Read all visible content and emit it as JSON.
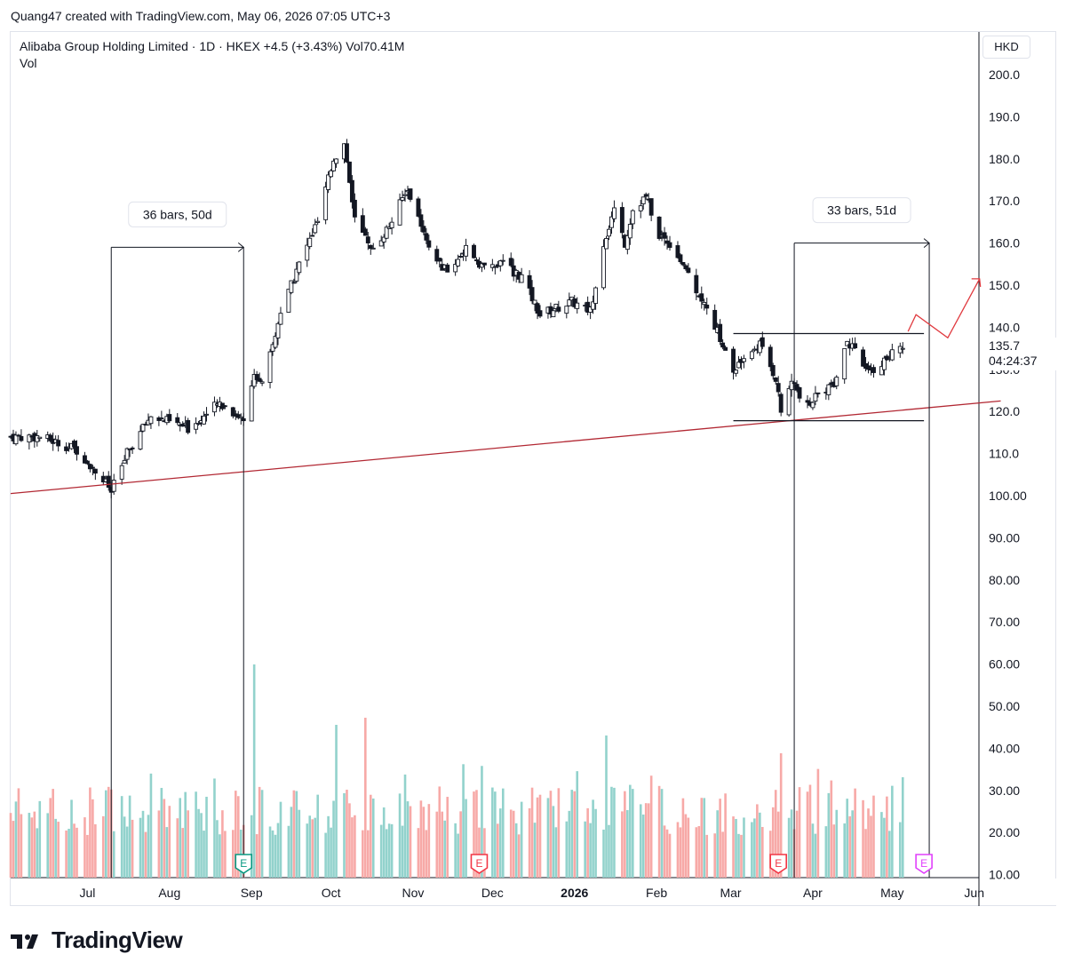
{
  "header": {
    "credit": "Quang47 created with TradingView.com, May 06, 2026 07:05 UTC+3",
    "legend_line1": "Alibaba Group Holding Limited · 1D · HKEX  +4.5 (+3.43%)  Vol70.41M",
    "legend_line2": "Vol"
  },
  "price_scale": {
    "currency": "HKD",
    "current_price": "135.7",
    "countdown": "04:24:37"
  },
  "brand": {
    "name": "TradingView"
  },
  "chart_data": {
    "type": "candlestick",
    "symbol": "Alibaba Group Holding Limited",
    "exchange": "HKEX",
    "interval": "1D",
    "currency": "HKD",
    "change": "+4.5 (+3.43%)",
    "volume_label": "Vol70.41M",
    "y_ticks": [
      "200.0",
      "190.0",
      "180.0",
      "170.0",
      "160.0",
      "150.0",
      "140.0",
      "130.0",
      "120.0",
      "110.0",
      "100.00",
      "90.00",
      "80.00",
      "70.00",
      "60.00",
      "50.00",
      "40.00",
      "30.00",
      "20.00",
      "10.00"
    ],
    "ylim": [
      10,
      203
    ],
    "x_ticks": [
      {
        "label": "Jul",
        "date": "2025-07-01",
        "bold": false
      },
      {
        "label": "Aug",
        "date": "2025-08-01",
        "bold": false
      },
      {
        "label": "Sep",
        "date": "2025-09-01",
        "bold": false
      },
      {
        "label": "Oct",
        "date": "2025-10-01",
        "bold": false
      },
      {
        "label": "Nov",
        "date": "2025-11-01",
        "bold": false
      },
      {
        "label": "Dec",
        "date": "2025-12-01",
        "bold": false
      },
      {
        "label": "2026",
        "date": "2026-01-01",
        "bold": true
      },
      {
        "label": "Feb",
        "date": "2026-02-01",
        "bold": false
      },
      {
        "label": "Mar",
        "date": "2026-03-01",
        "bold": false
      },
      {
        "label": "Apr",
        "date": "2026-04-01",
        "bold": false
      },
      {
        "label": "May",
        "date": "2026-05-01",
        "bold": false
      },
      {
        "label": "Jun",
        "date": "2026-06-01",
        "bold": false
      }
    ],
    "close_anchors": [
      [
        "2025-06-13",
        114
      ],
      [
        "2025-06-27",
        111
      ],
      [
        "2025-07-08",
        103
      ],
      [
        "2025-07-10",
        101
      ],
      [
        "2025-07-16",
        110
      ],
      [
        "2025-07-25",
        119
      ],
      [
        "2025-08-08",
        116
      ],
      [
        "2025-08-20",
        122
      ],
      [
        "2025-08-29",
        118
      ],
      [
        "2025-09-02",
        130
      ],
      [
        "2025-09-05",
        126
      ],
      [
        "2025-09-12",
        143
      ],
      [
        "2025-09-19",
        155
      ],
      [
        "2025-09-26",
        165
      ],
      [
        "2025-10-02",
        180
      ],
      [
        "2025-10-06",
        184
      ],
      [
        "2025-10-10",
        166
      ],
      [
        "2025-10-16",
        158
      ],
      [
        "2025-10-23",
        164
      ],
      [
        "2025-10-30",
        173
      ],
      [
        "2025-11-07",
        158
      ],
      [
        "2025-11-14",
        153
      ],
      [
        "2025-11-21",
        159
      ],
      [
        "2025-11-28",
        154
      ],
      [
        "2025-12-05",
        155
      ],
      [
        "2025-12-12",
        152
      ],
      [
        "2025-12-19",
        143
      ],
      [
        "2025-12-31",
        146
      ],
      [
        "2026-01-07",
        144
      ],
      [
        "2026-01-12",
        160
      ],
      [
        "2026-01-16",
        168
      ],
      [
        "2026-01-20",
        160
      ],
      [
        "2026-01-23",
        168
      ],
      [
        "2026-01-28",
        171
      ],
      [
        "2026-02-02",
        162
      ],
      [
        "2026-02-06",
        160
      ],
      [
        "2026-02-11",
        155
      ],
      [
        "2026-02-17",
        148
      ],
      [
        "2026-02-24",
        139
      ],
      [
        "2026-03-02",
        129
      ],
      [
        "2026-03-06",
        133
      ],
      [
        "2026-03-12",
        136
      ],
      [
        "2026-03-18",
        128
      ],
      [
        "2026-03-20",
        120
      ],
      [
        "2026-03-24",
        127
      ],
      [
        "2026-03-30",
        121
      ],
      [
        "2026-04-03",
        124
      ],
      [
        "2026-04-09",
        127
      ],
      [
        "2026-04-14",
        137
      ],
      [
        "2026-04-17",
        134
      ],
      [
        "2026-04-22",
        129
      ],
      [
        "2026-04-28",
        132
      ],
      [
        "2026-05-05",
        135.7
      ]
    ],
    "volume_scale_max": 60,
    "volume_spikes": [
      {
        "date": "2025-09-02",
        "value": 60
      },
      {
        "date": "2025-10-03",
        "value": 43
      },
      {
        "date": "2025-10-14",
        "value": 45
      },
      {
        "date": "2026-01-13",
        "value": 40
      },
      {
        "date": "2026-03-20",
        "value": 35
      }
    ],
    "annotations": {
      "trendline": {
        "from": [
          "2025-06-02",
          100.5
        ],
        "to": [
          "2026-06-11",
          122.5
        ],
        "color": "#b22833"
      },
      "range_top": {
        "from": "2026-03-02",
        "to": "2026-05-13",
        "price": 138.5
      },
      "range_bottom": {
        "from": "2026-03-02",
        "to": "2026-05-13",
        "price": 117.8
      },
      "measure_1": {
        "label": "36 bars, 50d",
        "from": "2025-07-10",
        "to": "2025-08-29",
        "price": 159
      },
      "measure_2": {
        "label": "33 bars, 51d",
        "from": "2026-03-25",
        "to": "2026-05-15",
        "price": 160
      },
      "projection": {
        "points": [
          [
            "2026-05-07",
            139
          ],
          [
            "2026-05-10",
            143
          ],
          [
            "2026-05-22",
            137.5
          ],
          [
            "2026-06-03",
            151.5
          ]
        ],
        "color": "#e0393e"
      }
    },
    "earnings_markers": [
      {
        "date": "2025-08-29",
        "label": "E",
        "color": "#089981"
      },
      {
        "date": "2025-11-26",
        "label": "E",
        "color": "#f23645"
      },
      {
        "date": "2026-03-19",
        "label": "E",
        "color": "#f23645"
      },
      {
        "date": "2026-05-13",
        "label": "E",
        "color": "#e040fb"
      }
    ]
  }
}
